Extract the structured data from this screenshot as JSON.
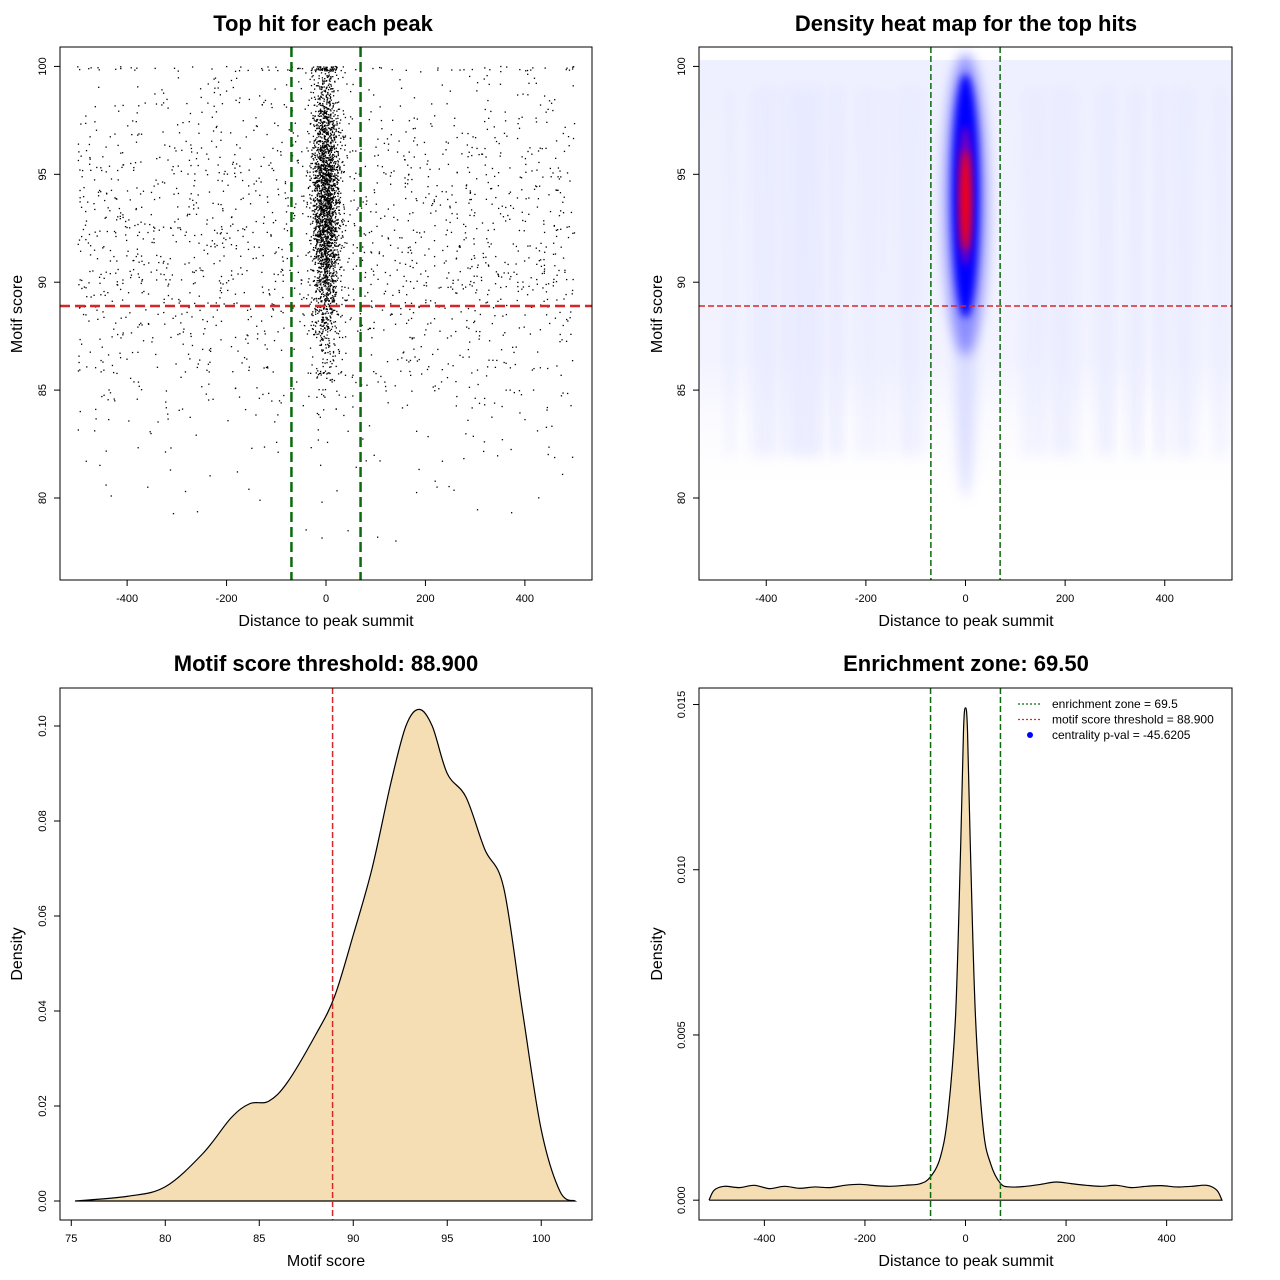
{
  "chart_data": [
    {
      "id": "scatter",
      "type": "scatter",
      "title": "Top hit for each peak",
      "xlabel": "Distance to peak summit",
      "ylabel": "Motif score",
      "xlim": [
        -535,
        535
      ],
      "ylim": [
        76.2,
        100.9
      ],
      "xticks": [
        -400,
        -200,
        0,
        200,
        400
      ],
      "yticks": [
        80,
        85,
        90,
        95,
        100
      ],
      "threshold_y": 88.9,
      "zone_x": [
        -69.5,
        69.5
      ],
      "colors": {
        "points": "#000000",
        "threshold": "#d62728",
        "zone": "#0b6b0b"
      },
      "point_clusters": [
        {
          "name": "background",
          "count": 1900,
          "x_range": [
            -500,
            500
          ],
          "y_mean": 91.5,
          "y_sd": 4.6
        },
        {
          "name": "central",
          "count": 2600,
          "x_mean": 0,
          "x_sd": 14,
          "y_mean": 93.5,
          "y_sd": 3.2
        }
      ]
    },
    {
      "id": "heatmap",
      "type": "heatmap",
      "title": "Density heat map for the top hits",
      "xlabel": "Distance to peak summit",
      "ylabel": "Motif score",
      "xlim": [
        -535,
        535
      ],
      "ylim": [
        76.2,
        100.9
      ],
      "xticks": [
        -400,
        -200,
        0,
        200,
        400
      ],
      "yticks": [
        80,
        85,
        90,
        95,
        100
      ],
      "threshold_y": 88.9,
      "zone_x": [
        -69.5,
        69.5
      ],
      "hotspot": {
        "x_center": 0,
        "x_sd": 10,
        "y_center": 93.8,
        "y_sd": 3.2
      },
      "colors": {
        "low": "#ffffff",
        "mid": "#0000ff",
        "high": "#ff0000",
        "threshold": "#d62728",
        "zone": "#0b6b0b"
      }
    },
    {
      "id": "score-density",
      "type": "area",
      "title": "Motif score threshold: 88.900",
      "xlabel": "Motif score",
      "ylabel": "Density",
      "xlim": [
        74.4,
        102.7
      ],
      "ylim": [
        -0.004,
        0.108
      ],
      "xticks": [
        75,
        80,
        85,
        90,
        95,
        100
      ],
      "yticks": [
        0.0,
        0.02,
        0.04,
        0.06,
        0.08,
        0.1
      ],
      "ytick_labels": [
        "0.00",
        "0.02",
        "0.04",
        "0.06",
        "0.08",
        "0.10"
      ],
      "threshold_x": 88.9,
      "x": [
        75.2,
        78,
        80,
        82,
        83.5,
        84.5,
        85.5,
        86.5,
        88,
        89,
        90,
        91,
        92,
        92.8,
        93.5,
        94.2,
        95,
        96,
        97,
        98,
        99,
        100,
        101,
        101.8
      ],
      "y": [
        0.0,
        0.001,
        0.003,
        0.01,
        0.0175,
        0.0205,
        0.021,
        0.025,
        0.035,
        0.043,
        0.056,
        0.07,
        0.088,
        0.1,
        0.1035,
        0.1,
        0.09,
        0.085,
        0.074,
        0.066,
        0.04,
        0.015,
        0.002,
        0.0
      ],
      "colors": {
        "fill": "#f5deb3",
        "line": "#000000",
        "threshold": "#d62728"
      }
    },
    {
      "id": "distance-density",
      "type": "area",
      "title": "Enrichment zone: 69.50",
      "xlabel": "Distance to peak summit",
      "ylabel": "Density",
      "xlim": [
        -530,
        530
      ],
      "ylim": [
        -0.0006,
        0.0155
      ],
      "xticks": [
        -400,
        -200,
        0,
        200,
        400
      ],
      "yticks": [
        0.0,
        0.005,
        0.01,
        0.015
      ],
      "ytick_labels": [
        "0.000",
        "0.005",
        "0.010",
        "0.015"
      ],
      "zone_x": [
        -69.5,
        69.5
      ],
      "x": [
        -510,
        -500,
        -480,
        -450,
        -420,
        -390,
        -360,
        -330,
        -300,
        -270,
        -240,
        -210,
        -180,
        -150,
        -120,
        -90,
        -70,
        -50,
        -35,
        -20,
        -10,
        -4,
        0,
        4,
        10,
        20,
        35,
        50,
        70,
        90,
        120,
        150,
        180,
        210,
        240,
        270,
        300,
        330,
        360,
        390,
        420,
        450,
        480,
        500,
        510
      ],
      "y": [
        0.0,
        0.0003,
        0.00042,
        0.00038,
        0.00045,
        0.00035,
        0.00042,
        0.00036,
        0.0004,
        0.00038,
        0.00045,
        0.00048,
        0.00044,
        0.00042,
        0.00045,
        0.0005,
        0.0007,
        0.0013,
        0.0026,
        0.0055,
        0.0105,
        0.0142,
        0.0149,
        0.0142,
        0.0105,
        0.0055,
        0.0022,
        0.0011,
        0.0005,
        0.0004,
        0.00042,
        0.00048,
        0.00055,
        0.0005,
        0.00045,
        0.00042,
        0.00045,
        0.00038,
        0.00042,
        0.00044,
        0.0004,
        0.00042,
        0.00045,
        0.0003,
        0.0
      ],
      "colors": {
        "fill": "#f5deb3",
        "line": "#000000",
        "zone": "#0b6b0b",
        "threshold": "#d62728",
        "dot": "#0000ff"
      },
      "legend": [
        {
          "type": "dotted-line",
          "color": "#0b6b0b",
          "text": "enrichment zone = 69.5"
        },
        {
          "type": "dotted-line",
          "color": "#d62728",
          "text": "motif score threshold = 88.900"
        },
        {
          "type": "dot",
          "color": "#0000ff",
          "text": "centrality p-val = -45.6205"
        }
      ]
    }
  ]
}
